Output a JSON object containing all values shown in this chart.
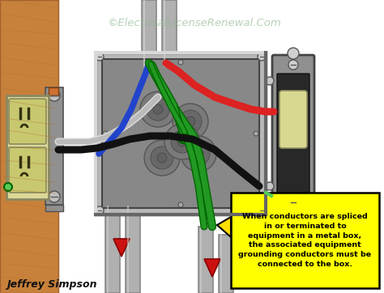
{
  "bg_color": "#ffffff",
  "watermark": "©ElectricalLicenseRenewal.Com",
  "author": "Jeffrey Simpson",
  "callout_text": "When conductors are spliced\nin or terminated to\nequipment in a metal box,\nthe associated equipment\ngrounding conductors must be\nconnected to the box.",
  "callout_bg": "#ffff00",
  "callout_border": "#000000",
  "wood_color": "#c8813a",
  "wood_dark": "#a06030",
  "wood_grain": "#b07030",
  "metal_box_face": "#9a9a9a",
  "metal_box_inner": "#888888",
  "metal_box_border": "#555555",
  "metal_box_ridge": "#c8c8c8",
  "conduit_light": "#d0d0d0",
  "conduit_mid": "#b0b0b0",
  "conduit_dark": "#888888",
  "outlet_body": "#ddd898",
  "outlet_face_top": "#c8c870",
  "outlet_face_bot": "#c8c870",
  "outlet_border": "#888860",
  "outlet_screw": "#a0a070",
  "switch_plate": "#909090",
  "switch_body_dark": "#282828",
  "switch_toggle": "#d8d890",
  "switch_screw_color": "#c0c0c0",
  "wire_red": "#dd2222",
  "wire_black": "#111111",
  "wire_white": "#dddddd",
  "wire_green": "#229922",
  "wire_green2": "#006600",
  "wire_blue": "#2244cc",
  "arrow_red": "#cc1111",
  "arrow_yellow": "#ffdd00",
  "grn_dot": "#44cc44",
  "grn_dot_border": "#006600"
}
